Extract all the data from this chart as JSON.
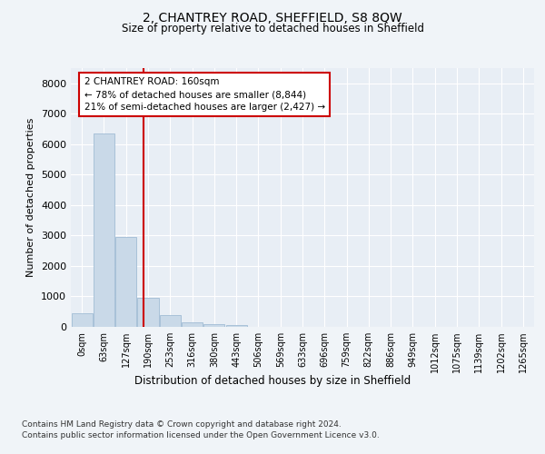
{
  "title": "2, CHANTREY ROAD, SHEFFIELD, S8 8QW",
  "subtitle": "Size of property relative to detached houses in Sheffield",
  "xlabel": "Distribution of detached houses by size in Sheffield",
  "ylabel": "Number of detached properties",
  "categories": [
    "0sqm",
    "63sqm",
    "127sqm",
    "190sqm",
    "253sqm",
    "316sqm",
    "380sqm",
    "443sqm",
    "506sqm",
    "569sqm",
    "633sqm",
    "696sqm",
    "759sqm",
    "822sqm",
    "886sqm",
    "949sqm",
    "1012sqm",
    "1075sqm",
    "1139sqm",
    "1202sqm",
    "1265sqm"
  ],
  "bar_values": [
    450,
    6350,
    2950,
    950,
    380,
    160,
    90,
    55,
    0,
    0,
    0,
    0,
    0,
    0,
    0,
    0,
    0,
    0,
    0,
    0,
    0
  ],
  "bar_color": "#c9d9e8",
  "bar_edge_color": "#a0bcd4",
  "vline_x": 2.78,
  "vline_color": "#cc0000",
  "annotation_text": "2 CHANTREY ROAD: 160sqm\n← 78% of detached houses are smaller (8,844)\n21% of semi-detached houses are larger (2,427) →",
  "annotation_box_color": "#cc0000",
  "ylim": [
    0,
    8500
  ],
  "yticks": [
    0,
    1000,
    2000,
    3000,
    4000,
    5000,
    6000,
    7000,
    8000
  ],
  "bg_color": "#f0f4f8",
  "plot_bg_color": "#e8eef5",
  "grid_color": "#ffffff",
  "footer_line1": "Contains HM Land Registry data © Crown copyright and database right 2024.",
  "footer_line2": "Contains public sector information licensed under the Open Government Licence v3.0."
}
